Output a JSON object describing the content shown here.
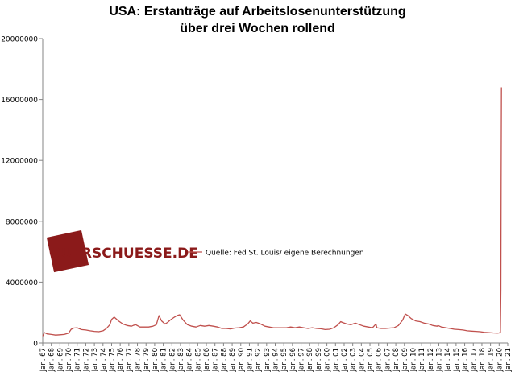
{
  "chart_data": {
    "type": "line",
    "title_lines": [
      "USA: Erstanträge  auf  Arbeitslosenunterstützung",
      "über drei Wochen rollend"
    ],
    "ylim": [
      0,
      20000000
    ],
    "yticks": [
      0,
      4000000,
      8000000,
      12000000,
      16000000,
      20000000
    ],
    "ytick_labels": [
      "0",
      "4000000",
      "8000000",
      "12000000",
      "16000000",
      "20000000"
    ],
    "xlim": [
      1967.0,
      2021.0
    ],
    "xtick_labels": [
      "Jan. 67",
      "Jan. 68",
      "Jan. 69",
      "Jan. 70",
      "Jan. 71",
      "Jan. 72",
      "Jan. 73",
      "Jan. 74",
      "Jan. 75",
      "Jan. 76",
      "Jan. 77",
      "Jan. 78",
      "Jan. 79",
      "Jan. 80",
      "Jan. 81",
      "Jan. 82",
      "Jan. 83",
      "Jan. 84",
      "Jan. 85",
      "Jan. 86",
      "Jan. 87",
      "Jan. 88",
      "Jan. 89",
      "Jan. 90",
      "Jan. 91",
      "Jan. 92",
      "Jan. 93",
      "Jan. 94",
      "Jan. 95",
      "Jan. 96",
      "Jan. 97",
      "Jan. 98",
      "Jan. 99",
      "Jan. 00",
      "Jan. 01",
      "Jan. 02",
      "Jan. 03",
      "Jan. 04",
      "Jan. 05",
      "Jan. 06",
      "Jan. 07",
      "Jan. 08",
      "Jan. 09",
      "Jan. 10",
      "Jan. 11",
      "Jan. 12",
      "Jan. 13",
      "Jan. 14",
      "Jan. 15",
      "Jan. 16",
      "Jan. 17",
      "Jan. 18",
      "Jan. 19",
      "Jan. 20",
      "Jan. 21"
    ],
    "grid": false,
    "legend_position": "center",
    "series": [
      {
        "name": "Quelle: Fed St. Louis/ eigene Berechnungen",
        "color": "#c0504d",
        "x": [
          1967.0,
          1967.2,
          1967.5,
          1968.0,
          1968.5,
          1969.0,
          1969.5,
          1970.0,
          1970.3,
          1970.6,
          1971.0,
          1971.5,
          1972.0,
          1972.5,
          1973.0,
          1973.5,
          1974.0,
          1974.4,
          1974.8,
          1975.0,
          1975.3,
          1975.8,
          1976.3,
          1976.8,
          1977.3,
          1977.5,
          1977.8,
          1978.3,
          1978.8,
          1979.3,
          1979.8,
          1980.2,
          1980.5,
          1980.8,
          1981.2,
          1981.5,
          1981.8,
          1982.3,
          1982.6,
          1982.9,
          1983.3,
          1983.8,
          1984.3,
          1984.8,
          1985.3,
          1985.8,
          1986.3,
          1986.8,
          1987.3,
          1987.8,
          1988.3,
          1988.8,
          1989.3,
          1989.8,
          1990.3,
          1990.8,
          1991.1,
          1991.4,
          1991.8,
          1992.3,
          1992.8,
          1993.3,
          1993.8,
          1994.3,
          1994.8,
          1995.3,
          1995.8,
          1996.3,
          1996.8,
          1997.3,
          1997.8,
          1998.3,
          1998.8,
          1999.3,
          1999.8,
          2000.3,
          2000.8,
          2001.3,
          2001.6,
          2001.8,
          2002.3,
          2002.8,
          2003.3,
          2003.8,
          2004.3,
          2004.8,
          2005.3,
          2005.7,
          2005.8,
          2006.3,
          2006.8,
          2007.3,
          2007.8,
          2008.3,
          2008.8,
          2009.1,
          2009.4,
          2009.8,
          2010.3,
          2010.8,
          2011.3,
          2011.8,
          2012.3,
          2012.8,
          2012.9,
          2013.3,
          2013.8,
          2014.3,
          2014.8,
          2015.3,
          2015.8,
          2016.3,
          2016.8,
          2017.3,
          2017.8,
          2018.3,
          2018.8,
          2019.3,
          2019.8,
          2020.0,
          2020.15,
          2020.2,
          2020.23,
          2020.27
        ],
        "values": [
          450000,
          680000,
          600000,
          560000,
          520000,
          540000,
          560000,
          650000,
          900000,
          980000,
          1000000,
          880000,
          850000,
          800000,
          760000,
          740000,
          800000,
          950000,
          1200000,
          1550000,
          1700000,
          1450000,
          1250000,
          1150000,
          1100000,
          1150000,
          1200000,
          1050000,
          1050000,
          1050000,
          1100000,
          1200000,
          1800000,
          1450000,
          1250000,
          1350000,
          1500000,
          1700000,
          1800000,
          1850000,
          1500000,
          1200000,
          1100000,
          1050000,
          1150000,
          1100000,
          1150000,
          1100000,
          1050000,
          950000,
          950000,
          920000,
          980000,
          1000000,
          1050000,
          1250000,
          1450000,
          1300000,
          1350000,
          1250000,
          1100000,
          1050000,
          1000000,
          1000000,
          1000000,
          1000000,
          1050000,
          1000000,
          1050000,
          1000000,
          950000,
          1000000,
          950000,
          930000,
          880000,
          900000,
          1000000,
          1200000,
          1400000,
          1350000,
          1250000,
          1200000,
          1300000,
          1200000,
          1100000,
          1050000,
          1000000,
          1250000,
          1000000,
          950000,
          950000,
          980000,
          1000000,
          1150000,
          1500000,
          1900000,
          1800000,
          1600000,
          1450000,
          1400000,
          1300000,
          1250000,
          1150000,
          1100000,
          1150000,
          1050000,
          1000000,
          950000,
          900000,
          880000,
          850000,
          800000,
          780000,
          760000,
          740000,
          700000,
          680000,
          660000,
          650000,
          660000,
          700000,
          3500000,
          10500000,
          16800000
        ]
      }
    ]
  },
  "logo": {
    "text": "QUERSCHUESSE.DE",
    "color": "#8b1a1a"
  }
}
